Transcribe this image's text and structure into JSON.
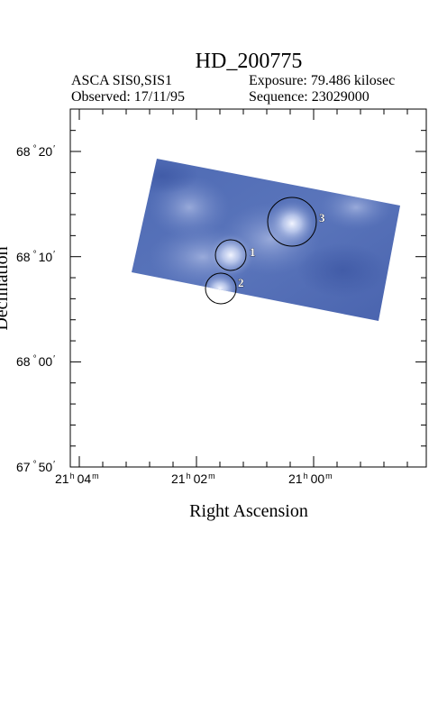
{
  "header": {
    "title": "HD_200775",
    "instrument": "ASCA SIS0,SIS1",
    "exposure": "Exposure: 79.486 kilosec",
    "observed": "Observed: 17/11/95",
    "sequence": "Sequence: 23029000"
  },
  "axes": {
    "xlabel": "Right Ascension",
    "ylabel": "Declination",
    "ra_ticks": [
      {
        "h": "21",
        "m": "04"
      },
      {
        "h": "21",
        "m": "02"
      },
      {
        "h": "21",
        "m": "00"
      }
    ],
    "dec_ticks": [
      {
        "deg": "68",
        "min": "20"
      },
      {
        "deg": "68",
        "min": "10"
      },
      {
        "deg": "68",
        "min": "00"
      },
      {
        "deg": "67",
        "min": "50"
      }
    ]
  },
  "sources": [
    {
      "label": "1"
    },
    {
      "label": "2"
    },
    {
      "label": "3"
    }
  ],
  "colors": {
    "image_base": "#4a66b0",
    "image_glow": "#e8eeff",
    "frame": "#000000"
  }
}
